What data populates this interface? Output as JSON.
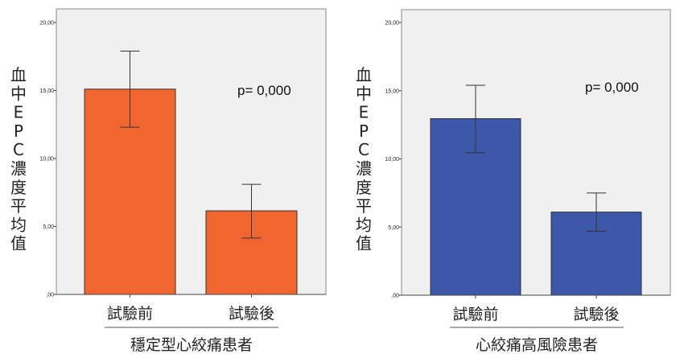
{
  "chart_data": [
    {
      "type": "bar",
      "ylabel_chars": [
        "血",
        "中",
        "E",
        "P",
        "C",
        "濃",
        "度",
        "平",
        "均",
        "值"
      ],
      "ylabel": "血中EPC濃度平均值",
      "group_label": "穩定型心絞痛患者",
      "categories": [
        "試驗前",
        "試驗後"
      ],
      "values": [
        15.1,
        6.15
      ],
      "error_upper": [
        17.9,
        8.1
      ],
      "error_lower": [
        12.3,
        4.15
      ],
      "ylim": [
        0,
        20.8
      ],
      "yticks": [
        0,
        5,
        10,
        15,
        20
      ],
      "ytick_labels": [
        ",00",
        "5,00",
        "10,00",
        "15,00",
        "20,00"
      ],
      "annotation": "p= 0,000",
      "bar_color": "#F06530",
      "plot_bg": "#F0F0F0",
      "grid": false
    },
    {
      "type": "bar",
      "ylabel_chars": [
        "血",
        "中",
        "E",
        "P",
        "C",
        "濃",
        "度",
        "平",
        "均",
        "值"
      ],
      "ylabel": "血中EPC濃度平均值",
      "group_label": "心絞痛高風險患者",
      "categories": [
        "試驗前",
        "試驗後"
      ],
      "values": [
        12.95,
        6.1
      ],
      "error_upper": [
        15.4,
        7.5
      ],
      "error_lower": [
        10.45,
        4.7
      ],
      "ylim": [
        0,
        20.8
      ],
      "yticks": [
        0,
        5,
        10,
        15,
        20
      ],
      "ytick_labels": [
        ",00",
        "5,00",
        "10,00",
        "15,00",
        "20,00"
      ],
      "annotation": "p= 0,000",
      "bar_color": "#3D58A8",
      "plot_bg": "#F0F0F0",
      "grid": false
    }
  ]
}
